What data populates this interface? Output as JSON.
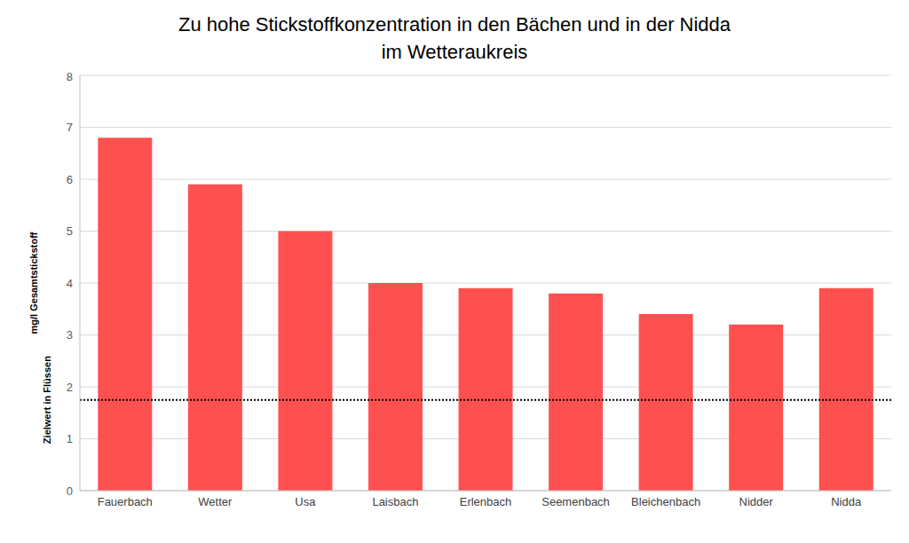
{
  "chart_data": {
    "type": "bar",
    "title": "Zu hohe Stickstoffkonzentration in den Bächen und in der Nidda\nim Wetteraukreis",
    "y_label": "mg/l Gesamtstickstoff",
    "categories": [
      "Fauerbach",
      "Wetter",
      "Usa",
      "Laisbach",
      "Erlenbach",
      "Seemenbach",
      "Bleichenbach",
      "Nidder",
      "Nidda"
    ],
    "values": [
      6.8,
      5.9,
      5.0,
      4.0,
      3.9,
      3.8,
      3.4,
      3.2,
      3.9
    ],
    "color": "#ff5050",
    "ylim": [
      0,
      8
    ],
    "yticks": [
      0,
      1,
      2,
      3,
      4,
      5,
      6,
      7,
      8
    ],
    "grid": true,
    "reference_line": {
      "value": 1.75,
      "label": "Zielwert in Flüssen"
    }
  }
}
